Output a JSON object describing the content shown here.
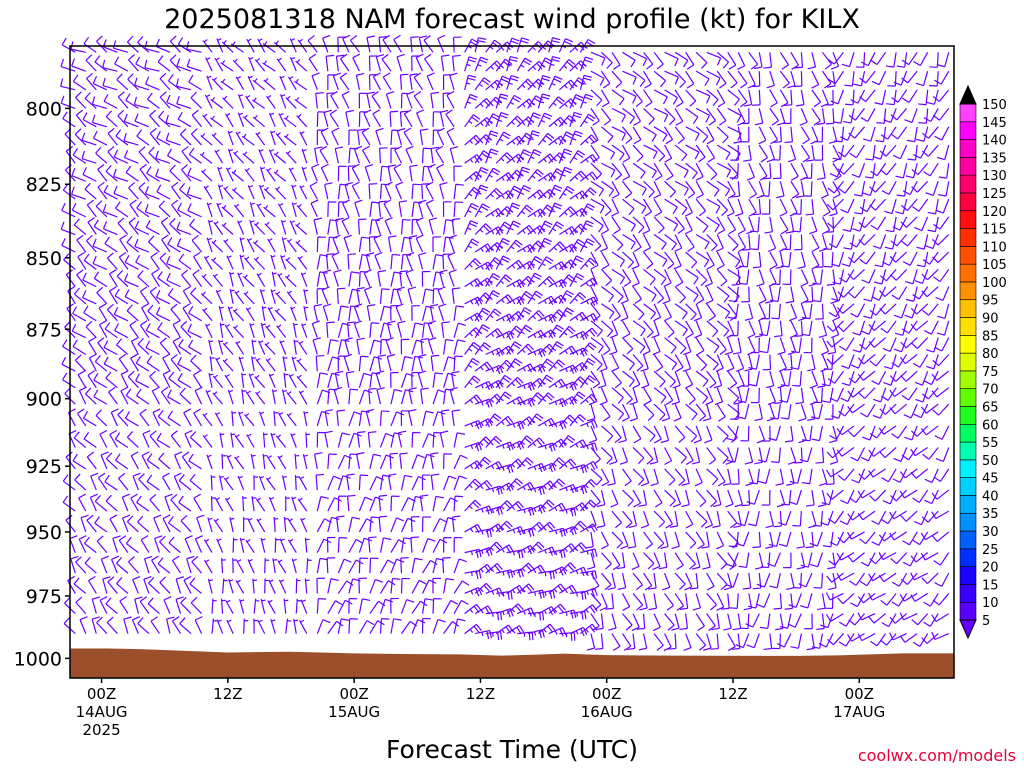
{
  "chart_data": {
    "type": "wind-barb-time-height",
    "title": "2025081318 NAM forecast wind profile (kt) for KILX",
    "xlabel": "Forecast Time (UTC)",
    "ylabel": "",
    "credit": "coolwx.com/models",
    "y_scale": "log-pressure",
    "y_reversed": true,
    "ylim_hpa": [
      1008,
      780
    ],
    "yticks": [
      800,
      825,
      850,
      875,
      900,
      925,
      950,
      975,
      1000
    ],
    "x_range_hours": [
      -3,
      81
    ],
    "xticks": [
      {
        "hour": 0,
        "lines": [
          "00Z",
          "14AUG",
          "2025"
        ]
      },
      {
        "hour": 12,
        "lines": [
          "12Z"
        ]
      },
      {
        "hour": 24,
        "lines": [
          "00Z",
          "15AUG"
        ]
      },
      {
        "hour": 36,
        "lines": [
          "12Z"
        ]
      },
      {
        "hour": 48,
        "lines": [
          "00Z",
          "16AUG"
        ]
      },
      {
        "hour": 60,
        "lines": [
          "12Z"
        ]
      },
      {
        "hour": 72,
        "lines": [
          "00Z",
          "17AUG"
        ]
      }
    ],
    "colorbar": {
      "units": "kt",
      "levels": [
        5,
        10,
        15,
        20,
        25,
        30,
        35,
        40,
        45,
        50,
        55,
        60,
        65,
        70,
        75,
        80,
        85,
        90,
        95,
        100,
        105,
        110,
        115,
        120,
        125,
        130,
        135,
        140,
        145,
        150
      ],
      "colors": [
        "#6a00ff",
        "#5a00ff",
        "#3a00ff",
        "#1a00ff",
        "#0030ff",
        "#0060ff",
        "#0090ff",
        "#00b0ff",
        "#00d0ff",
        "#00f0ff",
        "#00ffb0",
        "#00ff60",
        "#20ff20",
        "#60ff00",
        "#a0ff00",
        "#ddff00",
        "#ffff00",
        "#ffe000",
        "#ffc000",
        "#ff9000",
        "#ff7000",
        "#ff5000",
        "#ff3000",
        "#ff1010",
        "#ff0040",
        "#ff0070",
        "#ff00a0",
        "#ff00c8",
        "#ff00ff",
        "#ff40ff"
      ]
    },
    "barb_color": "#6a00ff",
    "terrain_color": "#9b4f2a",
    "surface_pressure": [
      {
        "hour": -3,
        "hpa": 996
      },
      {
        "hour": 0.5,
        "hpa": 996
      },
      {
        "hour": 4,
        "hpa": 996.3
      },
      {
        "hour": 9,
        "hpa": 997.1
      },
      {
        "hour": 12,
        "hpa": 997.6
      },
      {
        "hour": 18,
        "hpa": 997.3
      },
      {
        "hour": 24,
        "hpa": 998
      },
      {
        "hour": 30,
        "hpa": 998.3
      },
      {
        "hour": 34,
        "hpa": 998.4
      },
      {
        "hour": 38,
        "hpa": 998.9
      },
      {
        "hour": 42,
        "hpa": 998.4
      },
      {
        "hour": 44,
        "hpa": 998.1
      },
      {
        "hour": 48,
        "hpa": 998.7
      },
      {
        "hour": 54,
        "hpa": 998.9
      },
      {
        "hour": 66,
        "hpa": 999
      },
      {
        "hour": 70,
        "hpa": 998.8
      },
      {
        "hour": 76,
        "hpa": 998
      },
      {
        "hour": 81,
        "hpa": 998
      }
    ],
    "wind_regimes": [
      {
        "hours": [
          -3,
          10
        ],
        "dir_upper_deg": 300,
        "dir_lower_deg": 330,
        "speed_kt": 10
      },
      {
        "hours": [
          10,
          20
        ],
        "dir_upper_deg": 320,
        "dir_lower_deg": 350,
        "speed_kt": 5
      },
      {
        "hours": [
          20,
          34
        ],
        "dir_upper_deg": 340,
        "dir_lower_deg": 20,
        "speed_kt": 10
      },
      {
        "hours": [
          34,
          46
        ],
        "dir_upper_deg": 30,
        "dir_lower_deg": 70,
        "speed_kt": 15
      },
      {
        "hours": [
          46,
          60
        ],
        "dir_upper_deg": 130,
        "dir_lower_deg": 160,
        "speed_kt": 10
      },
      {
        "hours": [
          60,
          70
        ],
        "dir_upper_deg": 160,
        "dir_lower_deg": 190,
        "speed_kt": 10
      },
      {
        "hours": [
          70,
          81
        ],
        "dir_upper_deg": 200,
        "dir_lower_deg": 230,
        "speed_kt": 10
      }
    ],
    "legend": "colorbar-right",
    "grid": false
  }
}
